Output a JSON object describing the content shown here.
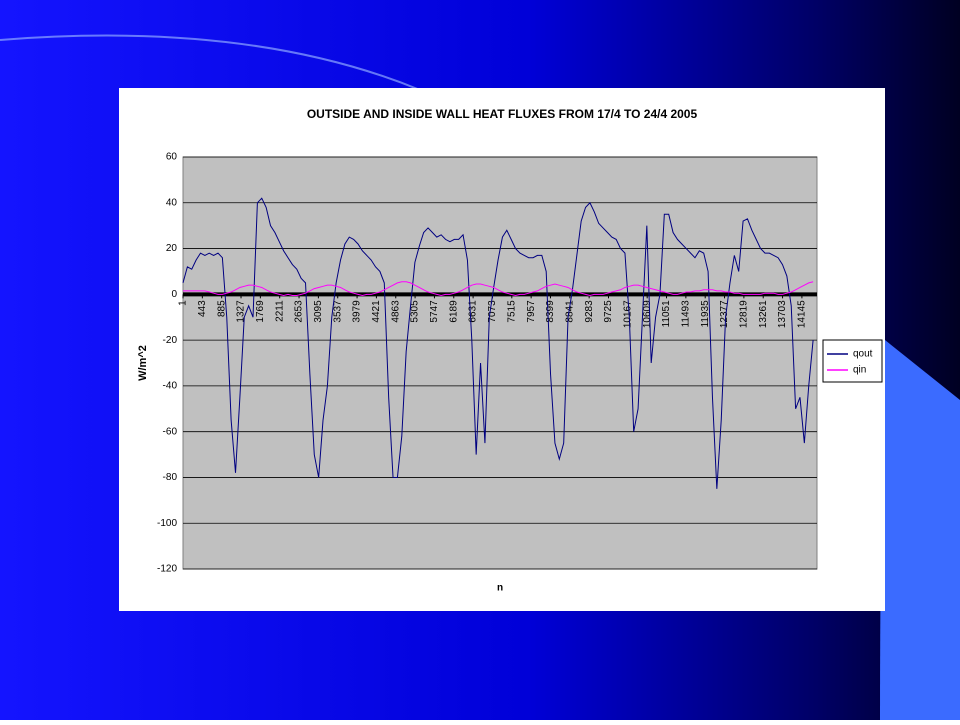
{
  "chart_data": {
    "type": "line",
    "title": "OUTSIDE AND INSIDE WALL HEAT FLUXES FROM 17/4 TO 24/4 2005",
    "x_label": "n",
    "y_label": "W/m^2",
    "xlim": [
      1,
      14490
    ],
    "ylim": [
      -120,
      60
    ],
    "yticks": [
      -120,
      -100,
      -80,
      -60,
      -40,
      -20,
      0,
      20,
      40,
      60
    ],
    "xticks": [
      1,
      443,
      885,
      1327,
      1769,
      2211,
      2653,
      3095,
      3537,
      3979,
      4421,
      4863,
      5305,
      5747,
      6189,
      6631,
      7073,
      7515,
      7957,
      8399,
      8841,
      9283,
      9725,
      10167,
      10609,
      11051,
      11493,
      11935,
      12377,
      12819,
      13261,
      13703,
      14145
    ],
    "grid": true,
    "legend": "right",
    "x": [
      1,
      101,
      201,
      301,
      401,
      501,
      601,
      701,
      801,
      901,
      1001,
      1101,
      1201,
      1301,
      1401,
      1501,
      1601,
      1701,
      1801,
      1901,
      2001,
      2101,
      2201,
      2301,
      2401,
      2501,
      2601,
      2701,
      2801,
      2901,
      3001,
      3101,
      3201,
      3301,
      3401,
      3501,
      3601,
      3701,
      3801,
      3901,
      4001,
      4101,
      4201,
      4301,
      4401,
      4501,
      4601,
      4701,
      4801,
      4901,
      5001,
      5101,
      5201,
      5301,
      5401,
      5501,
      5601,
      5701,
      5801,
      5901,
      6001,
      6101,
      6201,
      6301,
      6401,
      6501,
      6601,
      6701,
      6801,
      6901,
      7001,
      7101,
      7201,
      7301,
      7401,
      7501,
      7601,
      7701,
      7801,
      7901,
      8001,
      8101,
      8201,
      8301,
      8401,
      8501,
      8601,
      8701,
      8801,
      8901,
      9001,
      9101,
      9201,
      9301,
      9401,
      9501,
      9601,
      9701,
      9801,
      9901,
      10001,
      10101,
      10201,
      10301,
      10401,
      10501,
      10601,
      10701,
      10801,
      10901,
      11001,
      11101,
      11201,
      11301,
      11401,
      11501,
      11601,
      11701,
      11801,
      11901,
      12001,
      12101,
      12201,
      12301,
      12401,
      12501,
      12601,
      12701,
      12801,
      12901,
      13001,
      13101,
      13201,
      13301,
      13401,
      13501,
      13601,
      13701,
      13801,
      13901,
      14001,
      14101,
      14201,
      14301,
      14401
    ],
    "series": [
      {
        "name": "qout",
        "color": "#000080",
        "values": [
          5,
          12,
          11,
          15,
          18,
          17,
          18,
          17,
          18,
          16,
          -10,
          -55,
          -78,
          -45,
          -10,
          -5,
          -10,
          40,
          42,
          38,
          30,
          27,
          23,
          19,
          16,
          13,
          11,
          7,
          5,
          -35,
          -70,
          -80,
          -55,
          -40,
          -10,
          5,
          15,
          22,
          25,
          24,
          22,
          19,
          17,
          15,
          12,
          10,
          5,
          -45,
          -80,
          -80,
          -62,
          -25,
          -5,
          14,
          21,
          27,
          29,
          27,
          25,
          26,
          24,
          23,
          24,
          24,
          26,
          15,
          -20,
          -70,
          -30,
          -65,
          -10,
          3,
          15,
          25,
          28,
          24,
          20,
          18,
          17,
          16,
          16,
          17,
          17,
          10,
          -35,
          -65,
          -72,
          -65,
          -10,
          2,
          17,
          32,
          38,
          40,
          36,
          31,
          29,
          27,
          25,
          24,
          20,
          18,
          -10,
          -60,
          -50,
          -10,
          30,
          -30,
          -10,
          0,
          35,
          35,
          27,
          24,
          22,
          20,
          18,
          16,
          19,
          18,
          10,
          -45,
          -85,
          -55,
          -10,
          5,
          17,
          10,
          32,
          33,
          28,
          24,
          20,
          18,
          18,
          17,
          16,
          13,
          8,
          -5,
          -50,
          -45,
          -65,
          -40,
          -20
        ]
      },
      {
        "name": "qin",
        "color": "#ff00ff",
        "values": [
          1.5,
          1.5,
          1.5,
          1.5,
          1.5,
          1.5,
          1,
          0.5,
          0,
          0,
          0.5,
          1,
          2,
          3,
          3.5,
          4,
          4,
          3.5,
          3,
          2,
          1,
          0.5,
          0,
          -0.5,
          0,
          -0.5,
          -0.5,
          0,
          0.5,
          1.5,
          2.5,
          3,
          3.5,
          4,
          4,
          3.5,
          3,
          2,
          1,
          0.5,
          0,
          -0.5,
          0,
          0,
          0.5,
          1,
          2,
          3,
          4,
          5,
          5.5,
          5.5,
          5,
          4,
          3,
          2,
          1,
          0.5,
          0,
          -0.5,
          0,
          0,
          0.5,
          1,
          2,
          3,
          4,
          4.5,
          4.5,
          4,
          3.5,
          3,
          2,
          1,
          0.5,
          0,
          -0.5,
          0,
          0,
          0.5,
          1,
          1.5,
          2.5,
          3.5,
          4,
          4.5,
          4,
          3.5,
          3,
          2,
          1,
          0.5,
          0,
          -0.5,
          0,
          0,
          0,
          0.5,
          1,
          1.5,
          2,
          3,
          3.5,
          4,
          4,
          3.5,
          3,
          2.5,
          2,
          1.5,
          1,
          0.5,
          0,
          0,
          0.5,
          1,
          1,
          1.5,
          1.5,
          2,
          2,
          2,
          1.5,
          1.5,
          1,
          1,
          0.5,
          0.5,
          0,
          0,
          0,
          0,
          0,
          0.5,
          0.5,
          0.5,
          0,
          0,
          0.5,
          1,
          2,
          3,
          4,
          5,
          5.5
        ]
      }
    ]
  }
}
